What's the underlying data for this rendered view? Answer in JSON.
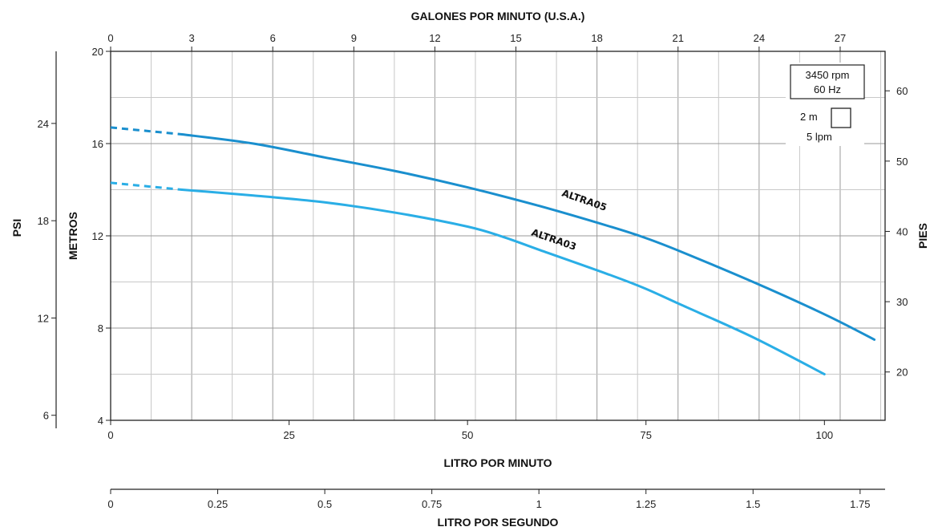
{
  "chart_data": {
    "type": "line",
    "title": "",
    "xlabel": "LITRO POR MINUTO",
    "ylabel": "METROS",
    "xlim": [
      0,
      108.5
    ],
    "ylim": [
      4,
      20
    ],
    "grid": true,
    "x_ticks": [
      "0",
      "25",
      "50",
      "75",
      "100"
    ],
    "y_ticks": [
      "4",
      "8",
      "12",
      "16",
      "20"
    ],
    "secondary_axes": {
      "top": {
        "label": "GALONES POR MINUTO (U.S.A.)",
        "ticks": [
          "0",
          "3",
          "6",
          "9",
          "12",
          "15",
          "18",
          "21",
          "24",
          "27"
        ]
      },
      "right": {
        "label": "PIES",
        "ticks": [
          "20",
          "30",
          "40",
          "50",
          "60"
        ]
      },
      "left_outer": {
        "label": "PSI",
        "ticks": [
          "6",
          "12",
          "18",
          "24"
        ]
      },
      "bottom_outer": {
        "label": "LITRO POR SEGUNDO",
        "ticks": [
          "0",
          "0.25",
          "0.5",
          "0.75",
          "1",
          "1.25",
          "1.5",
          "1.75"
        ]
      }
    },
    "series": [
      {
        "name": "ALTRA05",
        "color": "#1a8fce",
        "dashed_segment": [
          [
            0,
            16.7
          ],
          [
            10,
            16.4
          ]
        ],
        "x": [
          10,
          20,
          30,
          40,
          50,
          60,
          70,
          75,
          80,
          90,
          100,
          107
        ],
        "y": [
          16.4,
          16.0,
          15.4,
          14.8,
          14.1,
          13.3,
          12.4,
          11.9,
          11.3,
          10.0,
          8.6,
          7.5
        ]
      },
      {
        "name": "ALTRA03",
        "color": "#2aaee6",
        "dashed_segment": [
          [
            0,
            14.3
          ],
          [
            10,
            14.0
          ]
        ],
        "x": [
          10,
          20,
          30,
          40,
          50,
          55,
          60,
          70,
          75,
          80,
          90,
          100
        ],
        "y": [
          14.0,
          13.75,
          13.45,
          13.0,
          12.4,
          11.95,
          11.4,
          10.3,
          9.7,
          9.0,
          7.6,
          6.0
        ]
      }
    ],
    "legend": {
      "box_lines": [
        "3450 rpm",
        "60 Hz"
      ],
      "scale_h": "2 m",
      "scale_w": "5 lpm"
    }
  }
}
